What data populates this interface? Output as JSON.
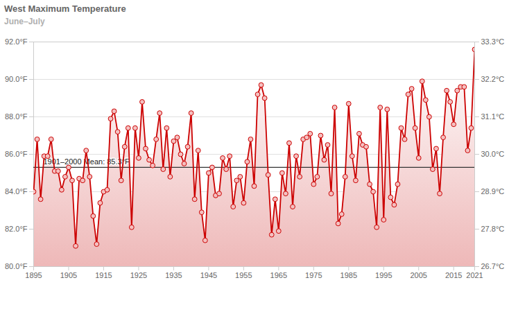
{
  "chart_data": {
    "type": "line",
    "title": "West Maximum Temperature",
    "subtitle": "June–July",
    "x": [
      1895,
      1896,
      1897,
      1898,
      1899,
      1900,
      1901,
      1902,
      1903,
      1904,
      1905,
      1906,
      1907,
      1908,
      1909,
      1910,
      1911,
      1912,
      1913,
      1914,
      1915,
      1916,
      1917,
      1918,
      1919,
      1920,
      1921,
      1922,
      1923,
      1924,
      1925,
      1926,
      1927,
      1928,
      1929,
      1930,
      1931,
      1932,
      1933,
      1934,
      1935,
      1936,
      1937,
      1938,
      1939,
      1940,
      1941,
      1942,
      1943,
      1944,
      1945,
      1946,
      1947,
      1948,
      1949,
      1950,
      1951,
      1952,
      1953,
      1954,
      1955,
      1956,
      1957,
      1958,
      1959,
      1960,
      1961,
      1962,
      1963,
      1964,
      1965,
      1966,
      1967,
      1968,
      1969,
      1970,
      1971,
      1972,
      1973,
      1974,
      1975,
      1976,
      1977,
      1978,
      1979,
      1980,
      1981,
      1982,
      1983,
      1984,
      1985,
      1986,
      1987,
      1988,
      1989,
      1990,
      1991,
      1992,
      1993,
      1994,
      1995,
      1996,
      1997,
      1998,
      1999,
      2000,
      2001,
      2002,
      2003,
      2004,
      2005,
      2006,
      2007,
      2008,
      2009,
      2010,
      2011,
      2012,
      2013,
      2014,
      2015,
      2016,
      2017,
      2018,
      2019,
      2020,
      2021
    ],
    "values": [
      84.0,
      86.8,
      83.6,
      85.9,
      85.9,
      86.8,
      85.1,
      85.1,
      84.1,
      84.8,
      85.3,
      84.6,
      81.1,
      84.7,
      84.6,
      86.2,
      84.8,
      82.7,
      81.2,
      83.4,
      84.0,
      84.1,
      87.9,
      88.3,
      87.2,
      84.6,
      86.4,
      87.4,
      82.1,
      87.4,
      85.8,
      88.8,
      86.3,
      85.7,
      85.4,
      86.8,
      88.2,
      85.2,
      87.4,
      84.8,
      86.7,
      86.9,
      86.0,
      85.5,
      86.4,
      88.2,
      83.6,
      86.2,
      82.9,
      81.4,
      85.0,
      85.3,
      83.8,
      83.9,
      85.8,
      85.2,
      85.9,
      83.2,
      84.6,
      84.8,
      83.4,
      85.6,
      86.8,
      84.3,
      89.2,
      89.7,
      89.0,
      84.9,
      81.7,
      83.6,
      81.9,
      85.0,
      83.9,
      86.6,
      83.2,
      85.9,
      84.8,
      86.8,
      86.9,
      87.1,
      84.4,
      84.8,
      87.0,
      85.7,
      86.5,
      83.9,
      88.5,
      82.3,
      82.8,
      84.8,
      88.7,
      85.9,
      84.6,
      87.1,
      86.5,
      86.4,
      84.4,
      84.0,
      82.1,
      88.5,
      82.5,
      88.4,
      83.7,
      83.3,
      84.4,
      87.4,
      86.8,
      89.2,
      89.5,
      87.4,
      85.8,
      89.9,
      88.9,
      88.0,
      85.2,
      86.3,
      83.9,
      86.9,
      89.4,
      88.8,
      87.6,
      89.4,
      89.6,
      89.6,
      86.2,
      87.4,
      91.6
    ],
    "color": "#cc0000",
    "marker": "circle",
    "xlim": [
      1895,
      2021
    ],
    "xticks": [
      1895,
      1905,
      1915,
      1925,
      1935,
      1945,
      1955,
      1965,
      1975,
      1985,
      1995,
      2005,
      2015,
      2021
    ],
    "ylim": [
      80,
      92
    ],
    "yticks": [
      {
        "value": 80,
        "label": "80.0°F"
      },
      {
        "value": 82,
        "label": "82.0°F"
      },
      {
        "value": 84,
        "label": "84.0°F"
      },
      {
        "value": 86,
        "label": "86.0°F"
      },
      {
        "value": 88,
        "label": "88.0°F"
      },
      {
        "value": 90,
        "label": "90.0°F"
      },
      {
        "value": 92,
        "label": "92.0°F"
      }
    ],
    "y2lim": [
      26.7,
      33.3
    ],
    "y2ticks": [
      {
        "value": 26.7,
        "label": "26.7°C"
      },
      {
        "value": 27.8,
        "label": "27.8°C"
      },
      {
        "value": 28.9,
        "label": "28.9°C"
      },
      {
        "value": 30.0,
        "label": "30.0°C"
      },
      {
        "value": 31.1,
        "label": "31.1°C"
      },
      {
        "value": 32.2,
        "label": "32.2°C"
      },
      {
        "value": 33.3,
        "label": "33.3°C"
      }
    ],
    "grid": true,
    "mean": {
      "value": 85.3,
      "label": "1901–2000 Mean: 85.3°F"
    }
  }
}
